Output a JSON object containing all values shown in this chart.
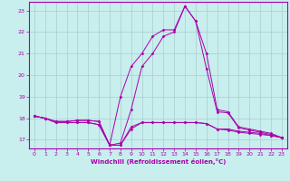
{
  "title": "",
  "xlabel": "Windchill (Refroidissement éolien,°C)",
  "ylabel": "",
  "background_color": "#c8eeee",
  "grid_color": "#aacccc",
  "line_color": "#aa00aa",
  "xlim_min": -0.5,
  "xlim_max": 23.5,
  "ylim_min": 16.6,
  "ylim_max": 23.4,
  "yticks": [
    17,
    18,
    19,
    20,
    21,
    22,
    23
  ],
  "xticks": [
    0,
    1,
    2,
    3,
    4,
    5,
    6,
    7,
    8,
    9,
    10,
    11,
    12,
    13,
    14,
    15,
    16,
    17,
    18,
    19,
    20,
    21,
    22,
    23
  ],
  "line1_x": [
    0,
    1,
    2,
    3,
    4,
    5,
    6,
    7,
    8,
    9,
    10,
    11,
    12,
    13,
    14,
    15,
    16,
    17,
    18,
    19,
    20,
    21,
    22,
    23
  ],
  "line1_y": [
    18.1,
    18.0,
    17.8,
    17.8,
    17.8,
    17.8,
    17.7,
    16.75,
    16.75,
    17.6,
    17.8,
    17.8,
    17.8,
    17.8,
    17.8,
    17.8,
    17.75,
    17.5,
    17.5,
    17.4,
    17.35,
    17.3,
    17.2,
    17.1
  ],
  "line2_x": [
    0,
    1,
    2,
    3,
    4,
    5,
    6,
    7,
    8,
    9,
    10,
    11,
    12,
    13,
    14,
    15,
    16,
    17,
    18,
    19,
    20,
    21,
    22,
    23
  ],
  "line2_y": [
    18.1,
    18.0,
    17.8,
    17.8,
    17.8,
    17.8,
    17.7,
    16.75,
    16.75,
    17.5,
    17.8,
    17.8,
    17.8,
    17.8,
    17.8,
    17.8,
    17.75,
    17.5,
    17.45,
    17.35,
    17.3,
    17.25,
    17.2,
    17.1
  ],
  "line3_x": [
    0,
    1,
    2,
    3,
    4,
    5,
    6,
    7,
    8,
    9,
    10,
    11,
    12,
    13,
    14,
    15,
    16,
    17,
    18,
    19,
    20,
    21,
    22,
    23
  ],
  "line3_y": [
    18.1,
    18.0,
    17.85,
    17.85,
    17.9,
    17.9,
    17.85,
    16.75,
    19.0,
    20.4,
    21.0,
    21.8,
    22.1,
    22.1,
    23.2,
    22.5,
    21.0,
    18.4,
    18.3,
    17.6,
    17.5,
    17.4,
    17.3,
    17.1
  ],
  "line4_x": [
    0,
    1,
    2,
    3,
    4,
    5,
    6,
    7,
    8,
    9,
    10,
    11,
    12,
    13,
    14,
    15,
    16,
    17,
    18,
    19,
    20,
    21,
    22,
    23
  ],
  "line4_y": [
    18.1,
    18.0,
    17.85,
    17.85,
    17.9,
    17.9,
    17.85,
    16.75,
    16.85,
    18.4,
    20.4,
    21.0,
    21.8,
    22.0,
    23.2,
    22.5,
    20.3,
    18.3,
    18.25,
    17.55,
    17.45,
    17.35,
    17.25,
    17.1
  ]
}
